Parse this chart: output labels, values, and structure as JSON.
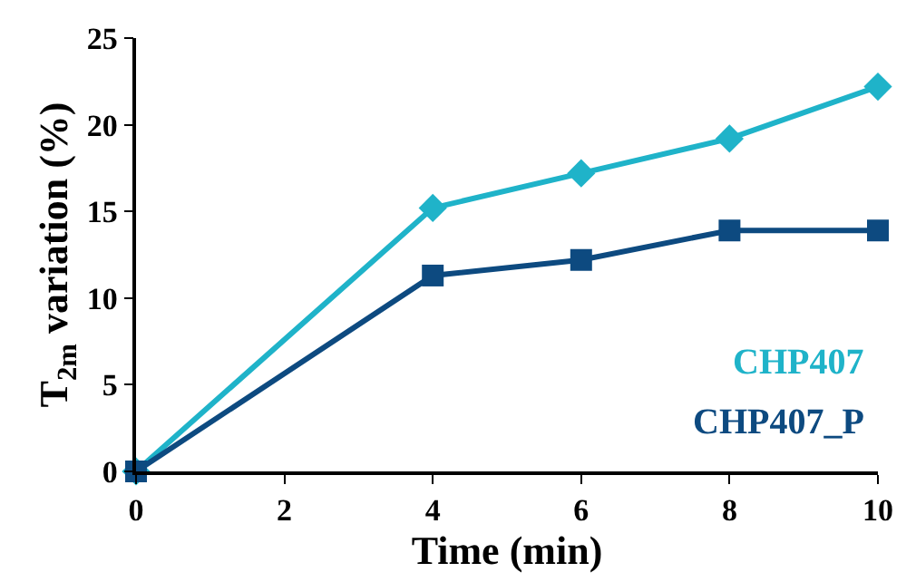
{
  "chart_data": {
    "type": "line",
    "xlabel": "Time (min)",
    "ylabel": "T$_{2m}$ variation (%)",
    "x": [
      0,
      4,
      6,
      8,
      10
    ],
    "series": [
      {
        "name": "CHP407",
        "color": "#1fb3c9",
        "marker": "diamond",
        "values": [
          0,
          15.2,
          17.2,
          19.2,
          22.2
        ]
      },
      {
        "name": "CHP407_P",
        "color": "#0d4a80",
        "marker": "square",
        "values": [
          0,
          11.3,
          12.2,
          13.9,
          13.9
        ]
      }
    ],
    "xlim": [
      0,
      10
    ],
    "xticks": [
      0,
      2,
      4,
      6,
      8,
      10
    ],
    "ylim": [
      0,
      25
    ],
    "yticks": [
      0,
      5,
      10,
      15,
      20,
      25
    ],
    "legend": false,
    "line_style": "solid"
  }
}
